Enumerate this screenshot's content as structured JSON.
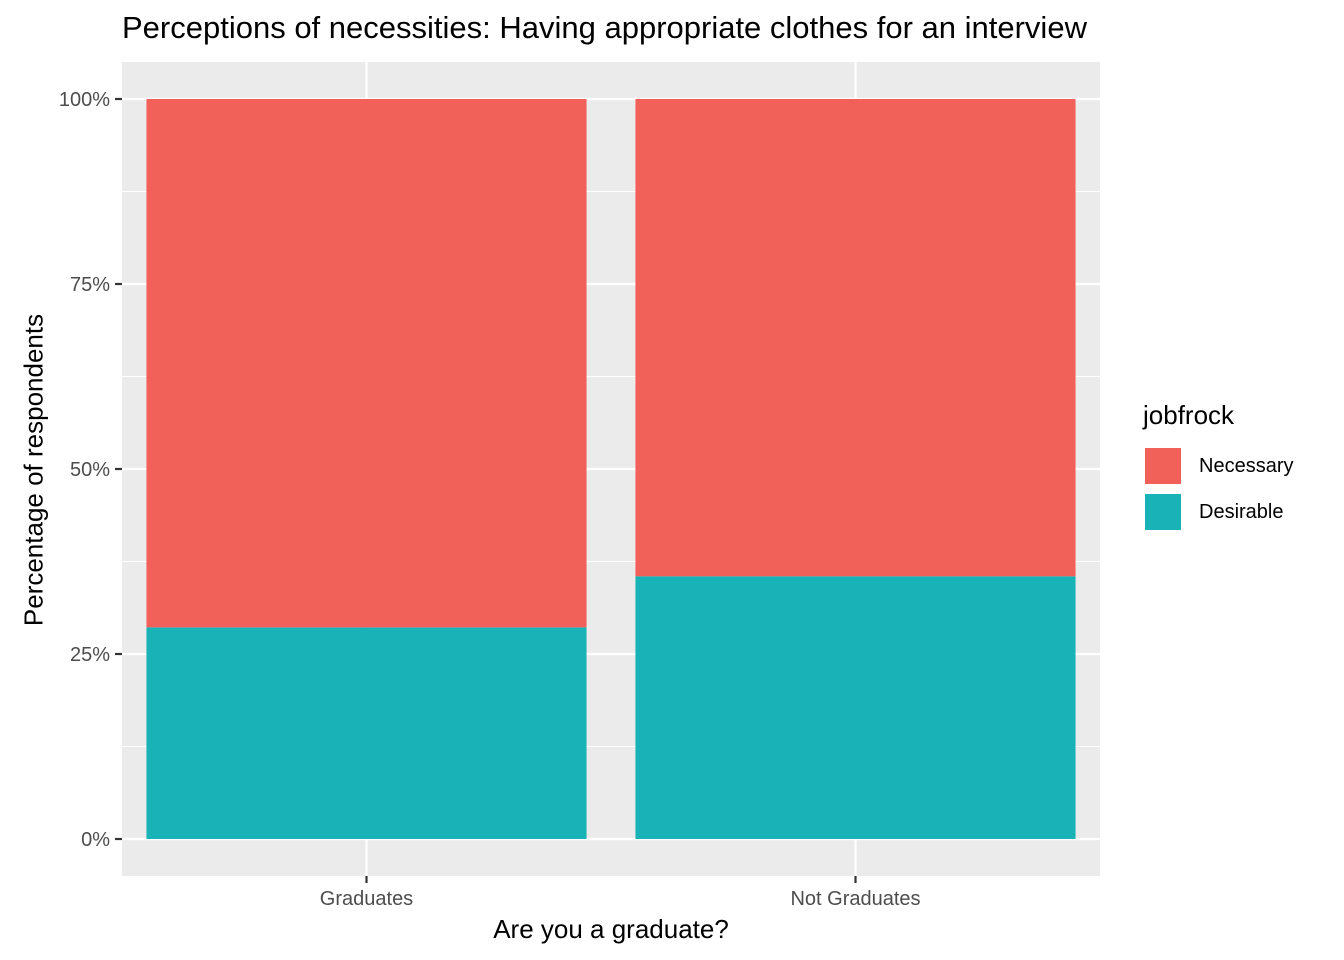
{
  "chart_data": {
    "type": "bar",
    "stacked": true,
    "title": "Perceptions of necessities: Having appropriate clothes for an interview",
    "xlabel": "Are you a graduate?",
    "ylabel": "Percentage of respondents",
    "categories": [
      "Graduates",
      "Not Graduates"
    ],
    "ylim": [
      0,
      1
    ],
    "yticks": [
      0,
      0.25,
      0.5,
      0.75,
      1.0
    ],
    "ytick_labels": [
      "0%",
      "25%",
      "50%",
      "75%",
      "100%"
    ],
    "legend_title": "jobfrock",
    "legend_position": "right",
    "grid": true,
    "series": [
      {
        "name": "Desirable",
        "values": [
          0.286,
          0.355
        ],
        "color": "#19B3B7"
      },
      {
        "name": "Necessary",
        "values": [
          0.714,
          0.645
        ],
        "color": "#F2605A"
      }
    ],
    "legend_order": [
      "Necessary",
      "Desirable"
    ]
  }
}
